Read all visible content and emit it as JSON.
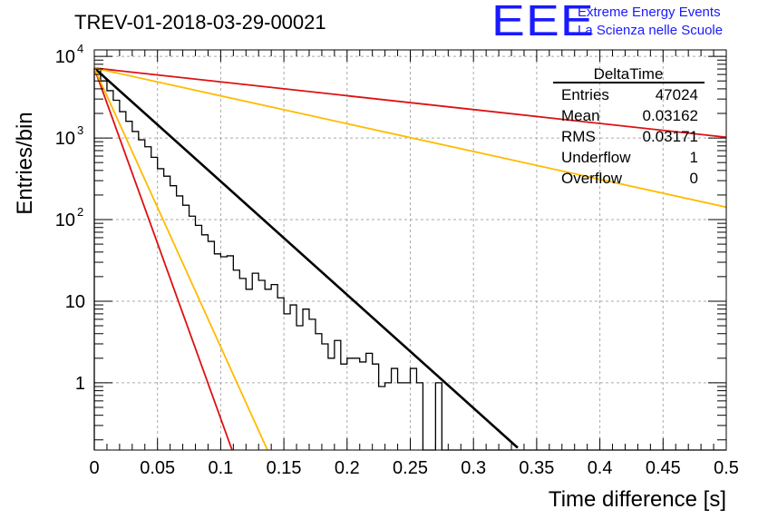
{
  "chart_data": {
    "type": "histogram",
    "title": "TREV-01-2018-03-29-00021",
    "xlabel": "Time difference [s]",
    "ylabel": "Entries/bin",
    "x_scale": "linear",
    "y_scale": "log",
    "xlim": [
      0,
      0.5
    ],
    "ylim": [
      0.15,
      12000
    ],
    "grid": true,
    "x_ticks": [
      "0",
      "0.05",
      "0.1",
      "0.15",
      "0.2",
      "0.25",
      "0.3",
      "0.35",
      "0.4",
      "0.45",
      "0.5"
    ],
    "y_ticks": [
      {
        "value": 1,
        "label": "1"
      },
      {
        "value": 10,
        "label": "10"
      },
      {
        "value": 100,
        "label": "10",
        "exp": "2"
      },
      {
        "value": 1000,
        "label": "10",
        "exp": "3"
      },
      {
        "value": 10000,
        "label": "10",
        "exp": "4"
      }
    ],
    "histogram": {
      "name": "DeltaTime",
      "bin_width": 0.005,
      "counts": [
        7000,
        5000,
        3800,
        2900,
        2100,
        1600,
        1200,
        950,
        780,
        580,
        420,
        340,
        260,
        195,
        150,
        110,
        85,
        65,
        54,
        38,
        35,
        36,
        24,
        19,
        14,
        22,
        18,
        14,
        16,
        11,
        7,
        9,
        5,
        8,
        6,
        4,
        3,
        2,
        3.3,
        1.7,
        2,
        2,
        1.8,
        2.3,
        1.7,
        0.9,
        1,
        1.5,
        1,
        1,
        1.5,
        1,
        0,
        0,
        1,
        0,
        0,
        0,
        0,
        0,
        0,
        0,
        0,
        0,
        0,
        0,
        0,
        0,
        0,
        0,
        0,
        0,
        0,
        0,
        0,
        0,
        0,
        0,
        0,
        0,
        0,
        0,
        0,
        0,
        0,
        0,
        0,
        0,
        0,
        0,
        0,
        0,
        0,
        0,
        0,
        0,
        0,
        0,
        0,
        0
      ]
    },
    "series": [
      {
        "color": "#000000",
        "x": [
          0,
          0.335
        ],
        "y": [
          7200,
          0.16
        ]
      },
      {
        "color": "#dd1111",
        "x": [
          0,
          0.109
        ],
        "y": [
          7200,
          0.15
        ]
      },
      {
        "color": "#ffbb00",
        "x": [
          0,
          0.137
        ],
        "y": [
          7200,
          0.15
        ]
      },
      {
        "color": "#dd1111",
        "x": [
          0,
          0.5
        ],
        "y": [
          7200,
          1020
        ]
      },
      {
        "color": "#ffbb00",
        "x": [
          0,
          0.5
        ],
        "y": [
          7200,
          142
        ]
      }
    ],
    "stats_box": {
      "title": "DeltaTime",
      "rows": [
        {
          "label": "Entries",
          "value": "47024"
        },
        {
          "label": "Mean",
          "value": "0.03162"
        },
        {
          "label": "RMS",
          "value": "0.03171"
        },
        {
          "label": "Underflow",
          "value": "1"
        },
        {
          "label": "Overflow",
          "value": "0"
        }
      ]
    }
  },
  "logo": {
    "mark": "EEE",
    "line1": "Extreme Energy Events",
    "line2": "La Scienza nelle Scuole"
  }
}
